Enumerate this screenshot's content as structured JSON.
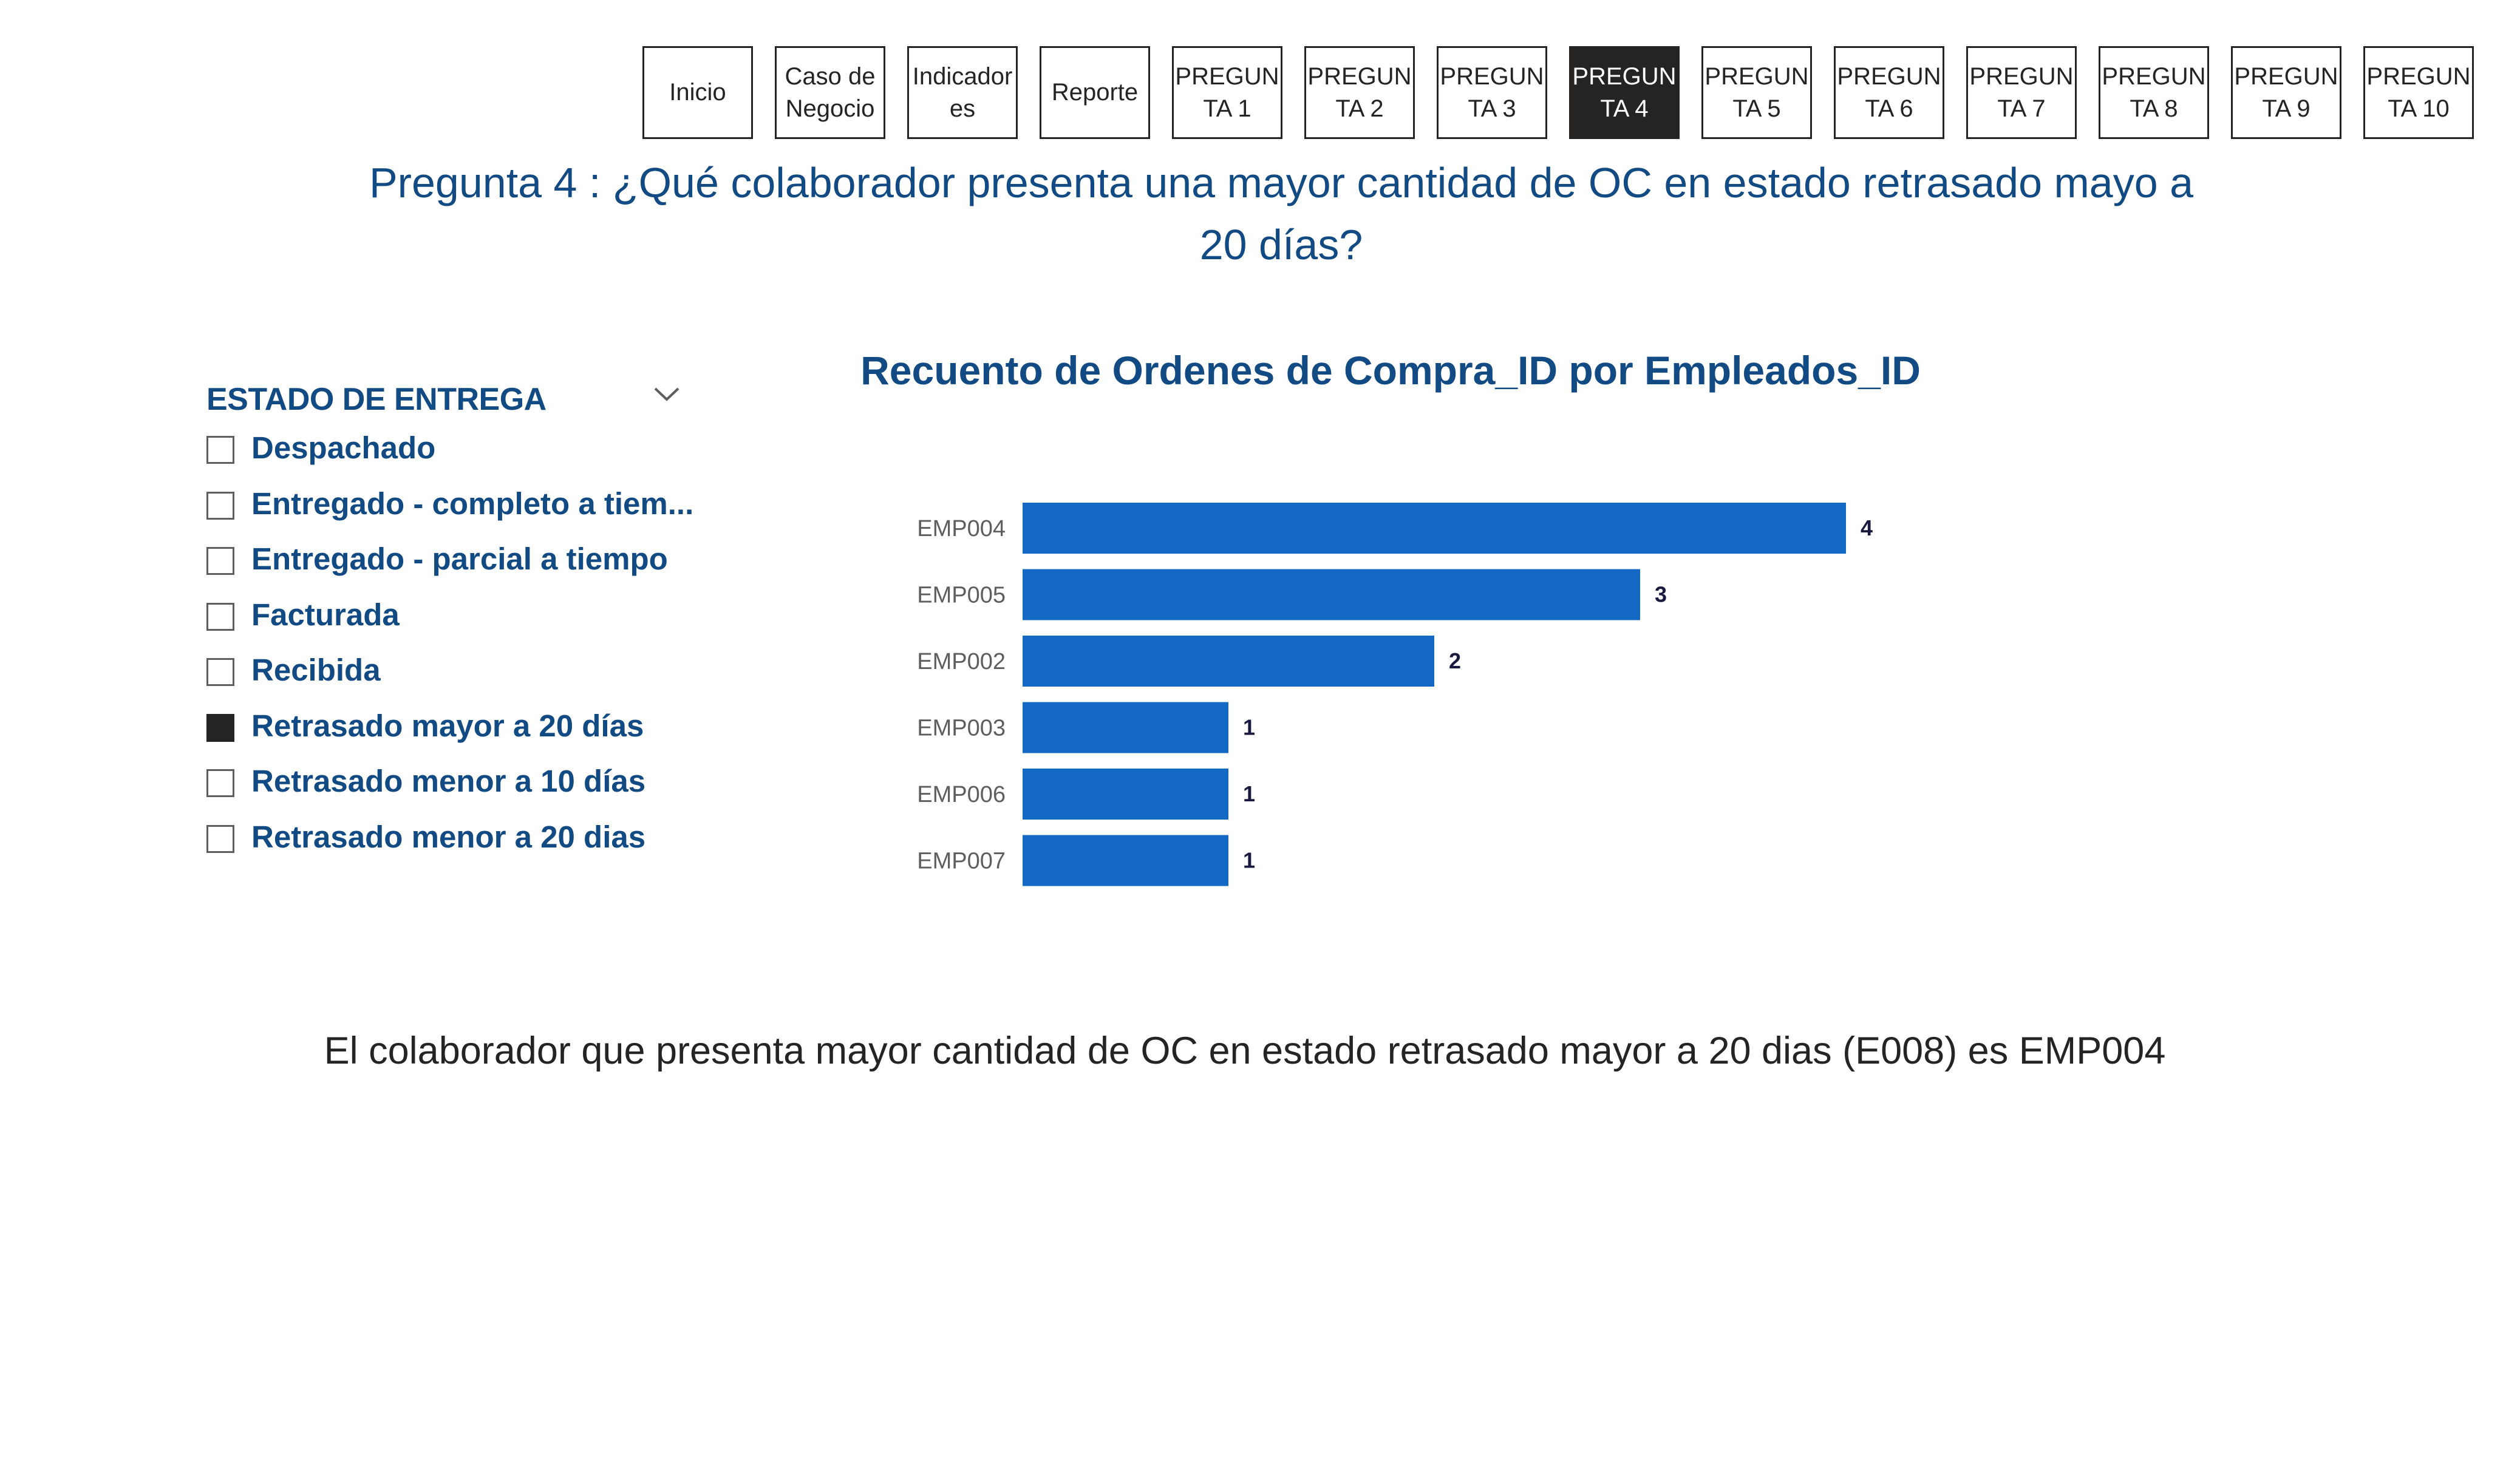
{
  "nav": {
    "buttons": [
      {
        "label": "Inicio",
        "active": false
      },
      {
        "label": "Caso de Negocio",
        "active": false
      },
      {
        "label": "Indicadores",
        "active": false
      },
      {
        "label": "Reporte",
        "active": false
      },
      {
        "label": "PREGUNTA 1",
        "active": false
      },
      {
        "label": "PREGUNTA 2",
        "active": false
      },
      {
        "label": "PREGUNTA 3",
        "active": false
      },
      {
        "label": "PREGUNTA 4",
        "active": true
      },
      {
        "label": "PREGUNTA 5",
        "active": false
      },
      {
        "label": "PREGUNTA 6",
        "active": false
      },
      {
        "label": "PREGUNTA 7",
        "active": false
      },
      {
        "label": "PREGUNTA 8",
        "active": false
      },
      {
        "label": "PREGUNTA 9",
        "active": false
      },
      {
        "label": "PREGUNTA 10",
        "active": false
      }
    ]
  },
  "question": {
    "text": "Pregunta 4 : ¿Qué colaborador presenta una mayor cantidad de OC en estado retrasado mayo a 20 días?"
  },
  "slicer": {
    "title": "ESTADO DE ENTREGA",
    "items": [
      {
        "label": "Despachado",
        "checked": false
      },
      {
        "label": "Entregado - completo a tiem...",
        "checked": false
      },
      {
        "label": "Entregado - parcial a tiempo",
        "checked": false
      },
      {
        "label": "Facturada",
        "checked": false
      },
      {
        "label": "Recibida",
        "checked": false
      },
      {
        "label": "Retrasado mayor a 20 días",
        "checked": true
      },
      {
        "label": "Retrasado menor a 10 días",
        "checked": false
      },
      {
        "label": "Retrasado menor a 20 dias",
        "checked": false
      }
    ]
  },
  "chart_data": {
    "type": "bar",
    "orientation": "horizontal",
    "title": "Recuento de Ordenes de Compra_ID por Empleados_ID",
    "categories": [
      "EMP004",
      "EMP005",
      "EMP002",
      "EMP003",
      "EMP006",
      "EMP007"
    ],
    "values": [
      4,
      3,
      2,
      1,
      1,
      1
    ],
    "data_labels": true,
    "xlabel": "",
    "ylabel": "",
    "grid": false,
    "colors": {
      "bar": "#1368c4",
      "label": "#1a1a40",
      "category": "#605e5c"
    }
  },
  "conclusion": {
    "text": "El colaborador que presenta mayor cantidad de OC en estado retrasado mayor a 20 dias (E008) es EMP004"
  },
  "colors": {
    "title_blue": "#124a84",
    "nav_active_bg": "#252423",
    "nav_border": "#252423"
  },
  "icons": {
    "slicer_dropdown": "chevron-down-icon"
  }
}
